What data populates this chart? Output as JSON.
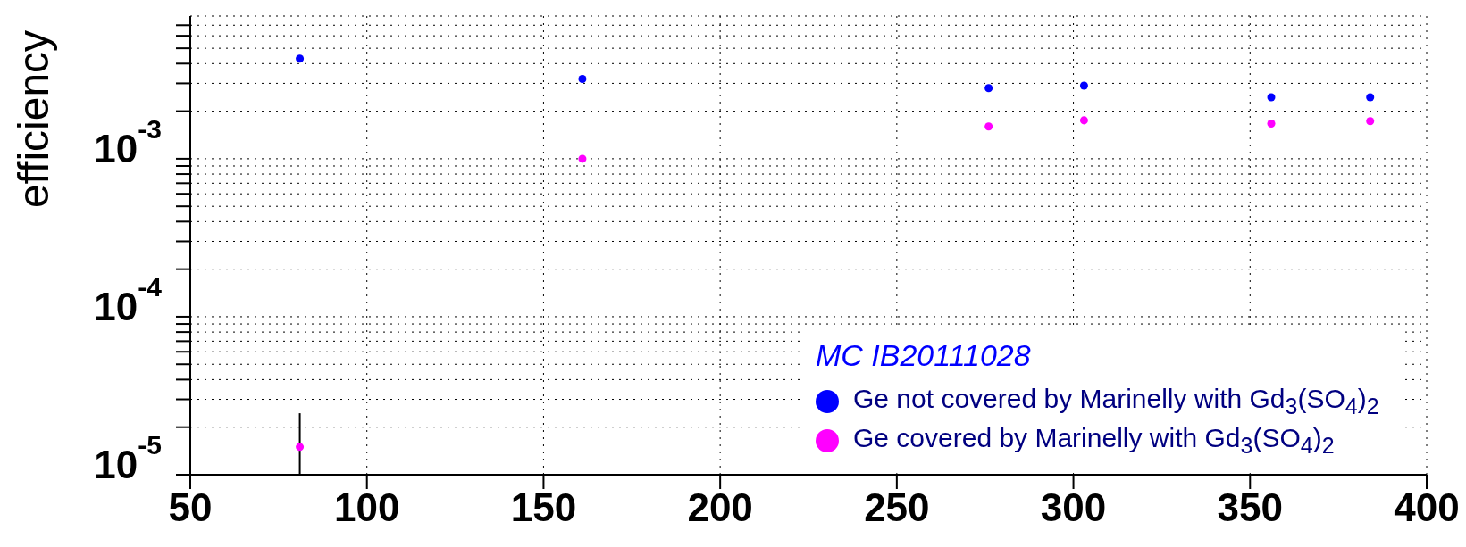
{
  "chart_data": {
    "type": "scatter",
    "ylabel": "efficiency",
    "legend_title": "MC  IB20111028",
    "xlim": [
      50,
      400
    ],
    "xticks": [
      50,
      100,
      150,
      200,
      250,
      300,
      350,
      400
    ],
    "ylim": [
      1e-05,
      0.008
    ],
    "log": "y",
    "yticks": [
      {
        "value": 1e-05,
        "label": "10$^{-5}$"
      },
      {
        "value": 2e-05,
        "label": null
      },
      {
        "value": 3e-05,
        "label": null
      },
      {
        "value": 4e-05,
        "label": null
      },
      {
        "value": 5e-05,
        "label": null
      },
      {
        "value": 6e-05,
        "label": null
      },
      {
        "value": 7e-05,
        "label": null
      },
      {
        "value": 8e-05,
        "label": null
      },
      {
        "value": 9e-05,
        "label": null
      },
      {
        "value": 0.0001,
        "label": "10$^{-4}$"
      },
      {
        "value": 0.0002,
        "label": null
      },
      {
        "value": 0.0003,
        "label": null
      },
      {
        "value": 0.0004,
        "label": null
      },
      {
        "value": 0.0005,
        "label": null
      },
      {
        "value": 0.0006,
        "label": null
      },
      {
        "value": 0.0007,
        "label": null
      },
      {
        "value": 0.0008,
        "label": null
      },
      {
        "value": 0.0009,
        "label": null
      },
      {
        "value": 0.001,
        "label": "10$^{-3}$"
      },
      {
        "value": 0.002,
        "label": null
      },
      {
        "value": 0.003,
        "label": null
      },
      {
        "value": 0.004,
        "label": null
      },
      {
        "value": 0.005,
        "label": null
      },
      {
        "value": 0.006,
        "label": null
      },
      {
        "value": 0.007,
        "label": null
      }
    ],
    "grid": true,
    "legend": "bottom right",
    "marker": "circle",
    "x": [
      81,
      161,
      276,
      303,
      356,
      384
    ],
    "series": [
      {
        "name": "Ge not covered by Marinelly with Gd$_{3}$(SO$_{4}$)$_{2}$",
        "color": "#0000ff",
        "values": [
          0.0043,
          0.0032,
          0.0028,
          0.0029,
          0.00245,
          0.00245
        ]
      },
      {
        "name": "Ge covered by Marinelly with Gd$_{3}$(SO$_{4}$)$_{2}$",
        "color": "#ff00ff",
        "values": [
          1.5e-05,
          0.001,
          0.0016,
          0.00175,
          0.00167,
          0.00173
        ],
        "errors": [
          [
            1e-05,
            2.45e-05
          ],
          null,
          null,
          null,
          null,
          null
        ]
      }
    ]
  }
}
